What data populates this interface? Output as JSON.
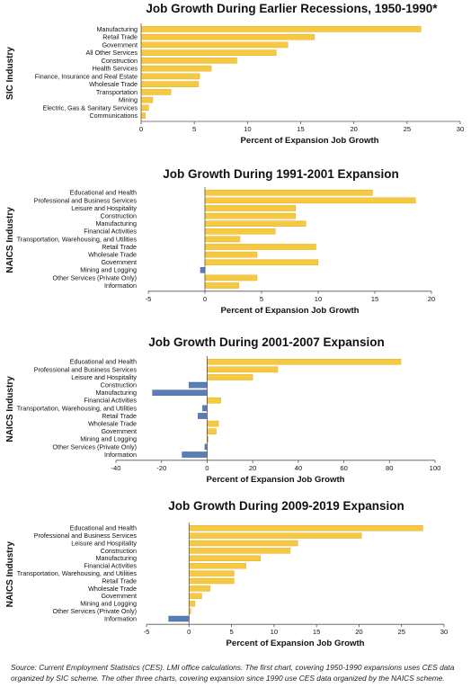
{
  "colors": {
    "positive": "#F7C940",
    "negative": "#5B7DB6",
    "axis": "#555555",
    "text": "#111111"
  },
  "chart_data": [
    {
      "type": "bar",
      "orientation": "horizontal",
      "title": "Job Growth During Earlier Recessions, 1950-1990*",
      "ylabel": "SIC Industry",
      "xlabel": "Percent of Expansion Job Growth",
      "xlim": [
        0,
        30
      ],
      "xticks": [
        0,
        5,
        10,
        15,
        20,
        25,
        30
      ],
      "grid": false,
      "categories": [
        "Manufacturing",
        "Retail Trade",
        "Government",
        "All Other Services",
        "Construction",
        "Health Services",
        "Finance, Insurance and Real Estate",
        "Wholesale Trade",
        "Transportation",
        "Mining",
        "Electric, Gas & Sanitary Services",
        "Communications"
      ],
      "values": [
        26.3,
        16.3,
        13.8,
        12.7,
        9.0,
        6.6,
        5.5,
        5.4,
        2.8,
        1.1,
        0.7,
        0.4
      ]
    },
    {
      "type": "bar",
      "orientation": "horizontal",
      "title": "Job Growth During 1991-2001 Expansion",
      "ylabel": "NAICS Industry",
      "xlabel": "Percent of Expansion Job Growth",
      "xlim": [
        -5,
        20
      ],
      "xticks": [
        -5,
        0,
        5,
        10,
        15,
        20
      ],
      "grid": false,
      "categories": [
        "Educational and Health",
        "Professional and Business Services",
        "Leisure and Hospitality",
        "Construction",
        "Manufacturing",
        "Financial Activities",
        "Transportation, Warehousing, and Utilities",
        "Retail Trade",
        "Wholesale Trade",
        "Government",
        "Mining and Logging",
        "Other Services (Private Only)",
        "Information"
      ],
      "values": [
        14.8,
        18.6,
        8.0,
        8.0,
        8.9,
        6.2,
        3.1,
        9.8,
        4.6,
        10.0,
        -0.4,
        4.6,
        3.0
      ]
    },
    {
      "type": "bar",
      "orientation": "horizontal",
      "title": "Job Growth During 2001-2007 Expansion",
      "ylabel": "NAICS Industry",
      "xlabel": "Percent of Expansion Job Growth",
      "xlim": [
        -40,
        100
      ],
      "xticks": [
        -40,
        -20,
        0,
        20,
        40,
        60,
        80,
        100
      ],
      "grid": false,
      "categories": [
        "Educational and Health",
        "Professional and Business Services",
        "Leisure and Hospitality",
        "Construction",
        "Manufacturing",
        "Financial Activities",
        "Transportation, Warehousing, and Utilities",
        "Retail Trade",
        "Wholesale Trade",
        "Government",
        "Mining and Logging",
        "Other Services (Private Only)",
        "Information"
      ],
      "values": [
        85,
        31,
        20,
        -8,
        -24,
        6,
        -2,
        -4,
        5,
        4,
        0.5,
        -1,
        -11
      ]
    },
    {
      "type": "bar",
      "orientation": "horizontal",
      "title": "Job Growth During 2009-2019 Expansion",
      "ylabel": "NAICS Industry",
      "xlabel": "Percent of Expansion Job Growth",
      "xlim": [
        -5,
        30
      ],
      "xticks": [
        -5,
        0,
        5,
        10,
        15,
        20,
        25,
        30
      ],
      "grid": false,
      "categories": [
        "Educational and Health",
        "Professional and Business Services",
        "Leisure and Hospitality",
        "Construction",
        "Manufacturing",
        "Financial Activities",
        "Transportation, Warehousing, and Utilities",
        "Retail Trade",
        "Wholesale Trade",
        "Government",
        "Mining and Logging",
        "Other Services (Private Only)",
        "Information"
      ],
      "values": [
        27.5,
        20.3,
        12.8,
        11.9,
        8.4,
        6.7,
        5.3,
        5.3,
        2.5,
        1.5,
        0.7,
        0.2,
        -2.4
      ]
    }
  ],
  "source_note": "Source: Current Employment Statistics (CES). LMI office calculations. The first chart, covering 1950-1990 expansions uses CES data organized by SIC scheme. The other three charts, covering expansion since 1990 use CES data organized by the NAICS scheme."
}
